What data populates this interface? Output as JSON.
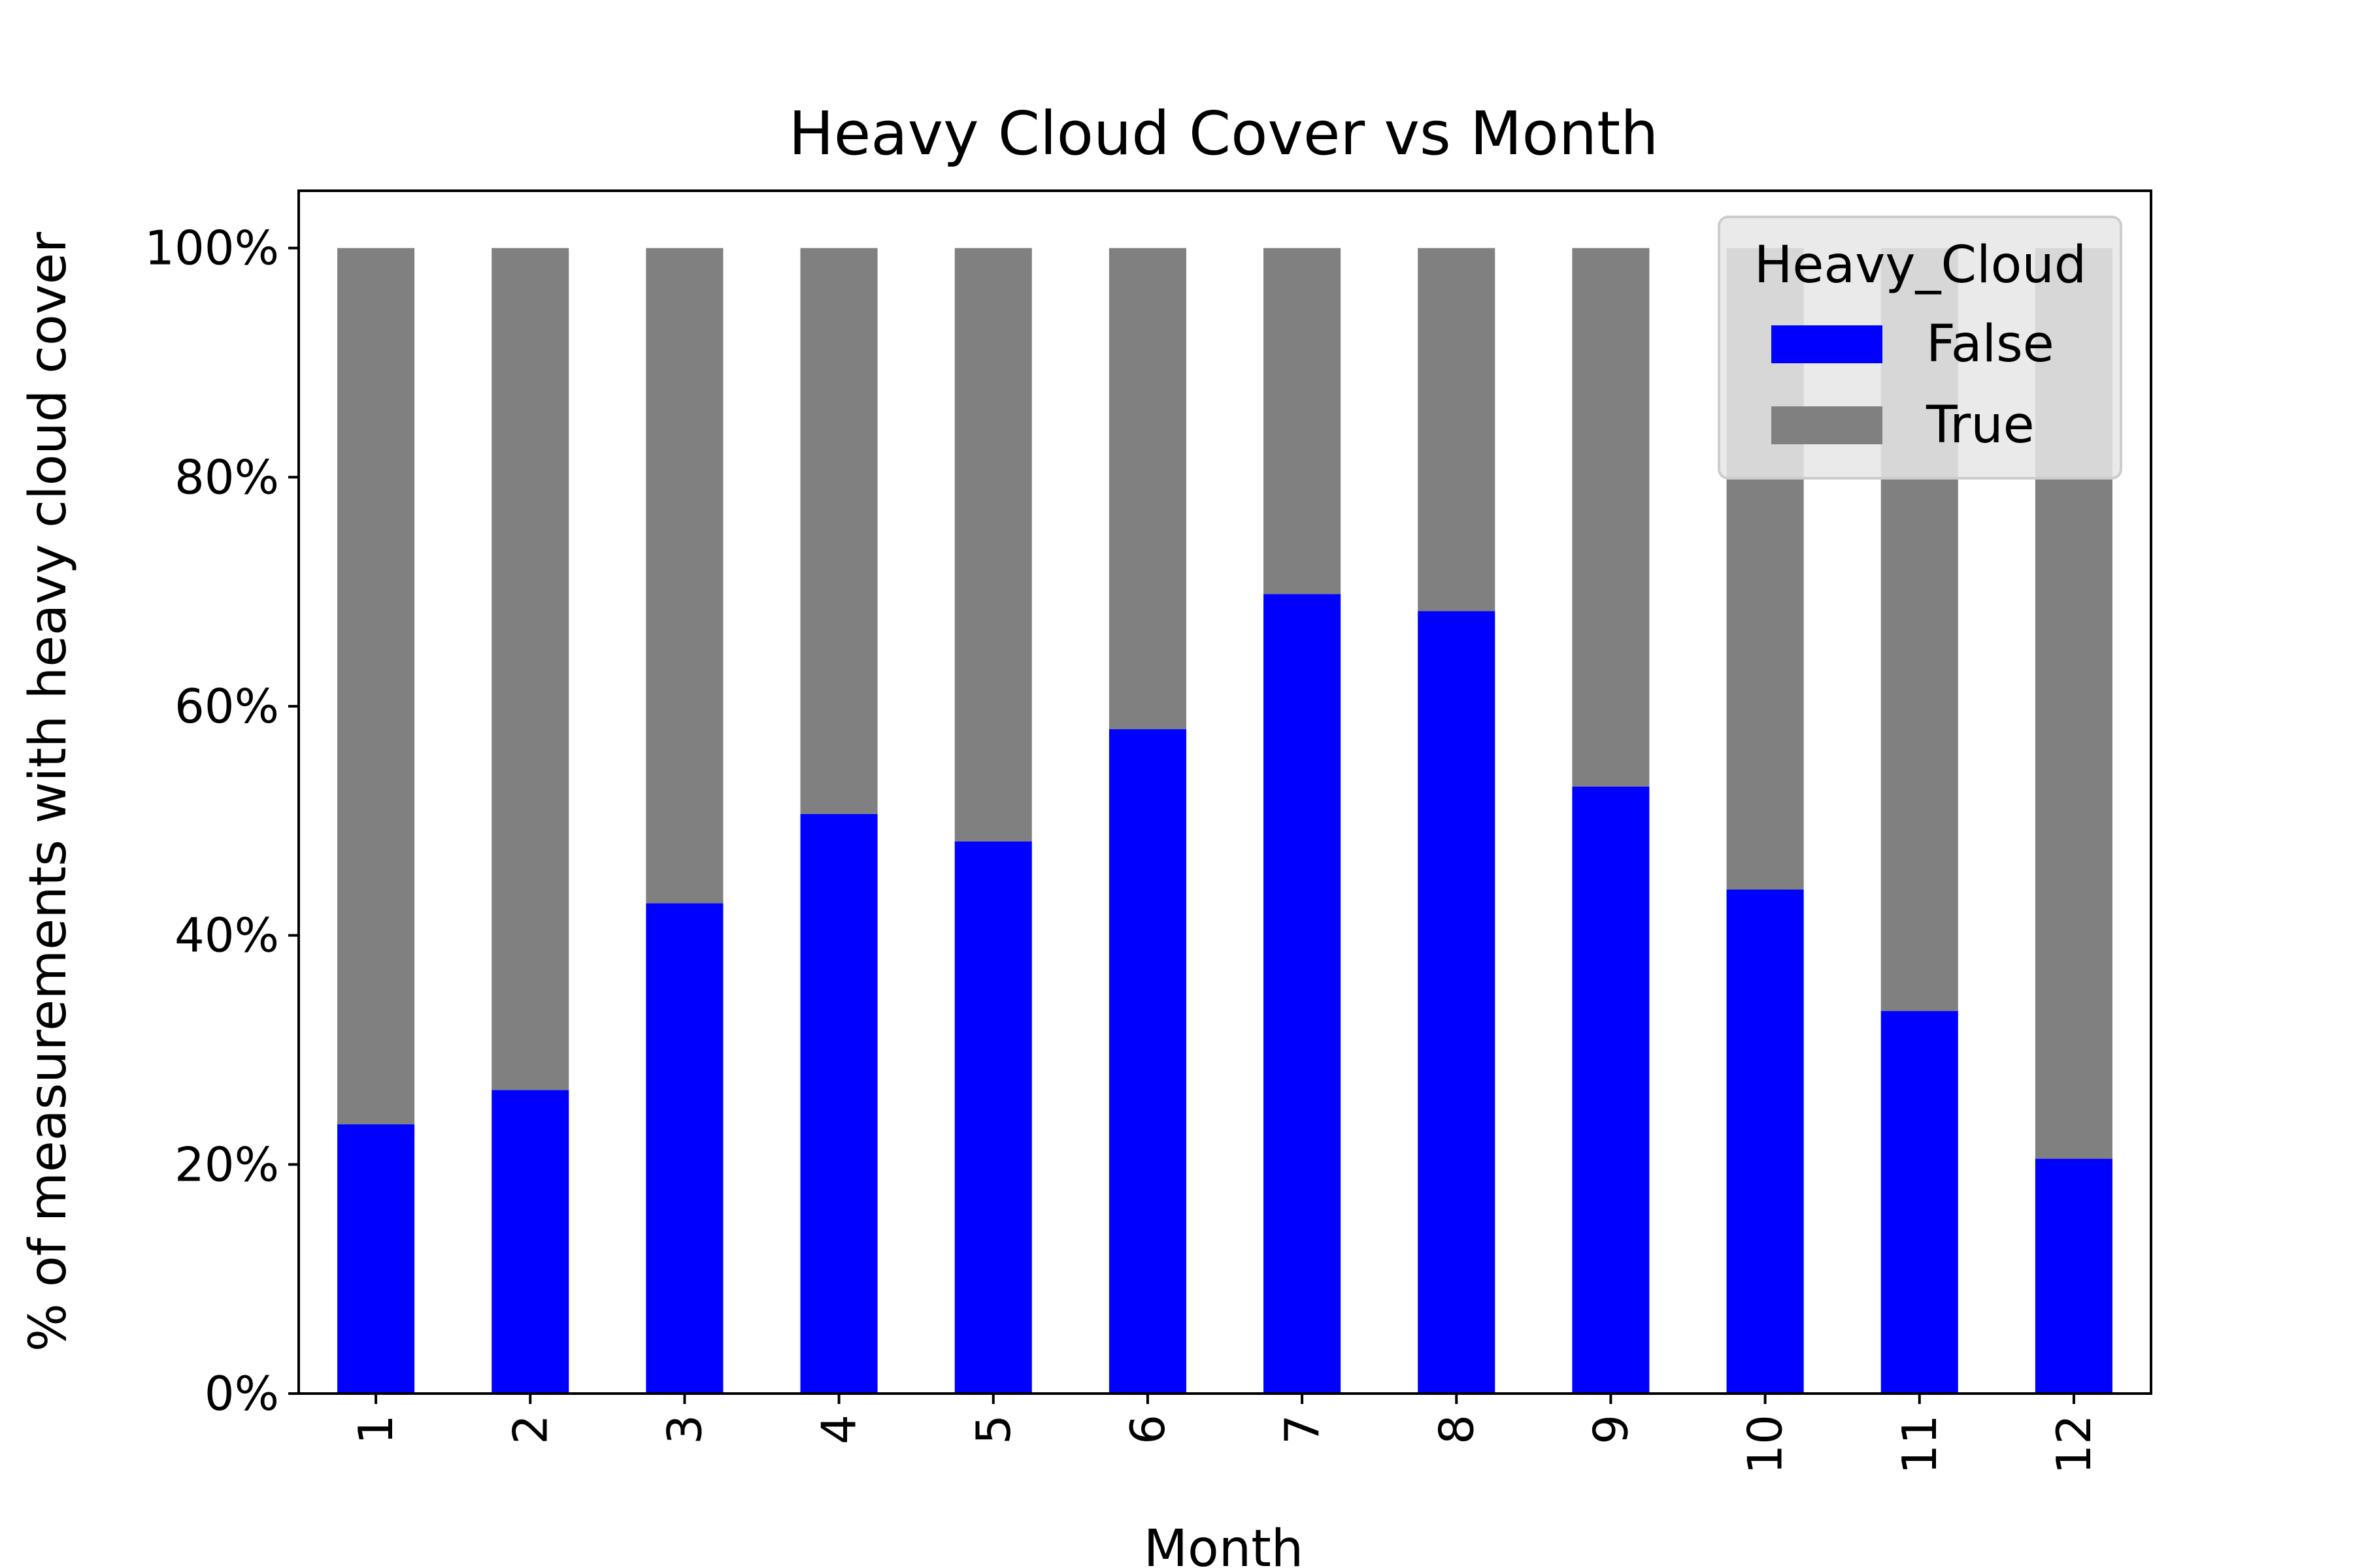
{
  "chart_data": {
    "type": "bar",
    "stacked": true,
    "title": "Heavy Cloud Cover vs Month",
    "xlabel": "Month",
    "ylabel": "% of measurements with heavy cloud cover",
    "categories": [
      "1",
      "2",
      "3",
      "4",
      "5",
      "6",
      "7",
      "8",
      "9",
      "10",
      "11",
      "12"
    ],
    "series": [
      {
        "name": "False",
        "color": "#0000ff",
        "values": [
          23.5,
          26.5,
          42.8,
          50.6,
          48.2,
          58.0,
          69.8,
          68.3,
          53.0,
          44.0,
          33.4,
          20.5
        ]
      },
      {
        "name": "True",
        "color": "#808080",
        "values": [
          76.5,
          73.5,
          57.2,
          49.4,
          51.8,
          42.0,
          30.2,
          31.7,
          47.0,
          56.0,
          66.6,
          79.5
        ]
      }
    ],
    "ylim": [
      0,
      105
    ],
    "yticks": [
      0,
      20,
      40,
      60,
      80,
      100
    ],
    "ytick_labels": [
      "0%",
      "20%",
      "40%",
      "60%",
      "80%",
      "100%"
    ],
    "legend": {
      "title": "Heavy_Cloud",
      "position": "upper-right"
    },
    "grid": false
  }
}
